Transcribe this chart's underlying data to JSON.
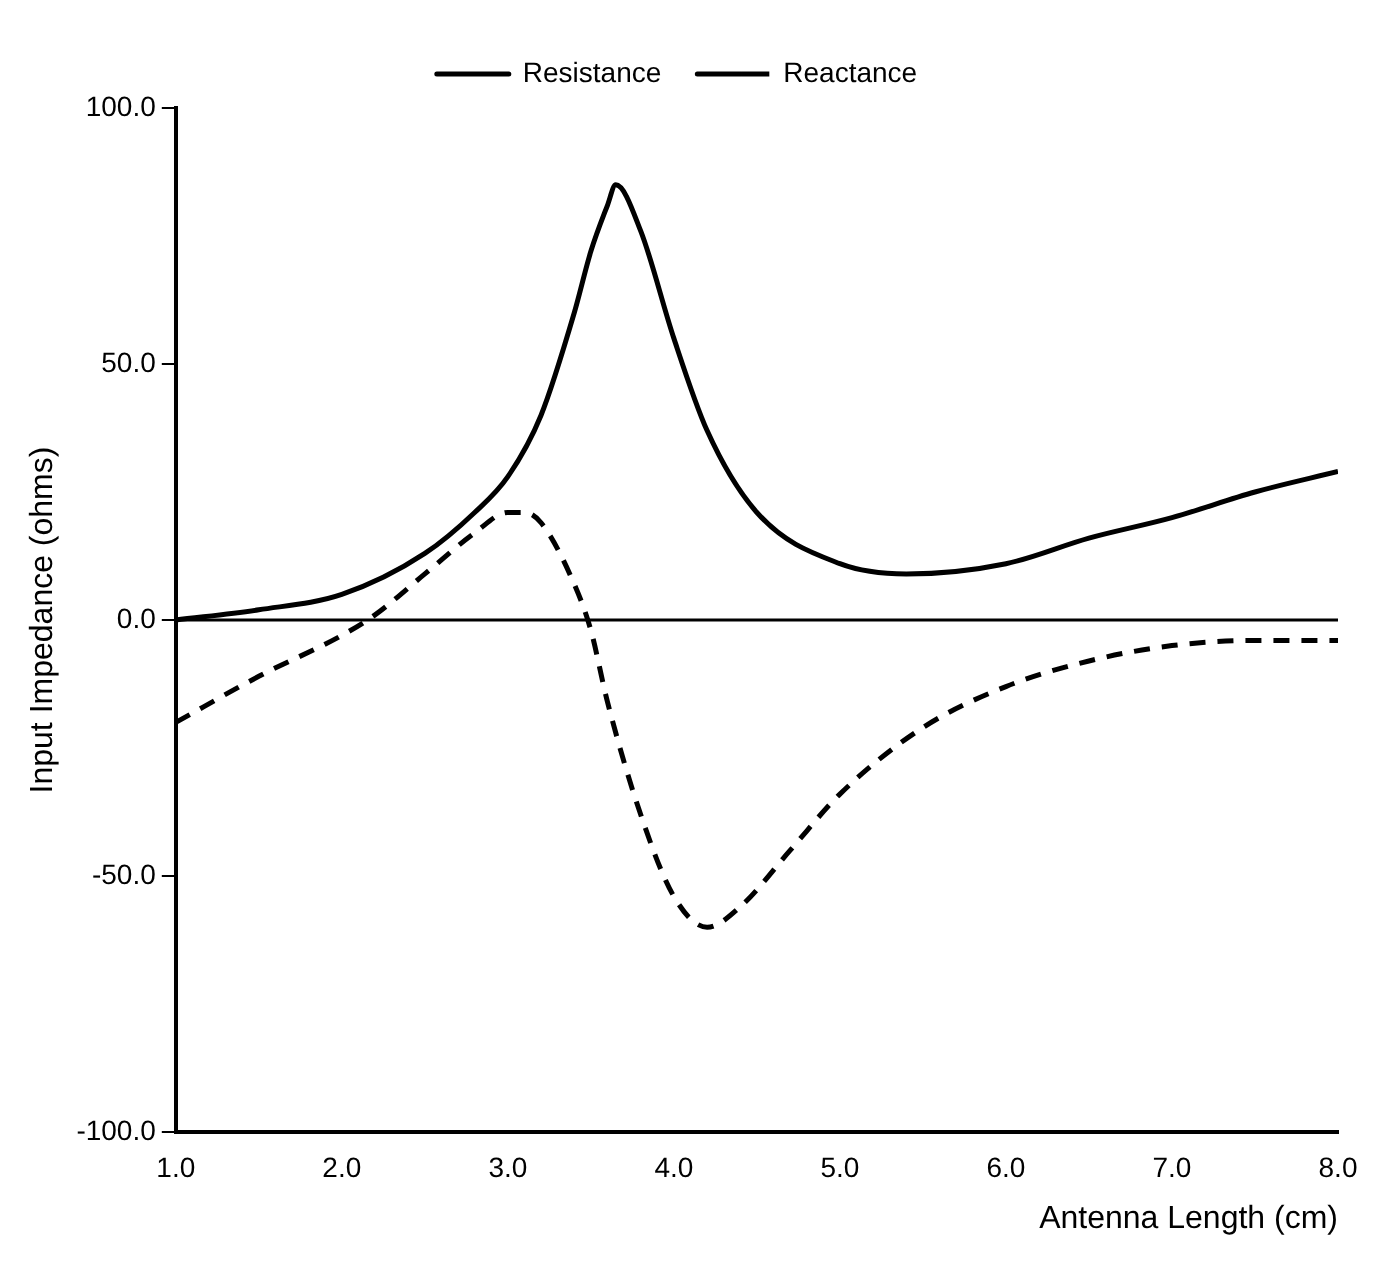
{
  "chart_data": {
    "type": "line",
    "xlabel": "Antenna Length (cm)",
    "ylabel": "Input Impedance (ohms)",
    "xlim": [
      1,
      8
    ],
    "ylim": [
      -100,
      100
    ],
    "xticks": [
      {
        "value": 1,
        "label": "1.0"
      },
      {
        "value": 2,
        "label": "2.0"
      },
      {
        "value": 3,
        "label": "3.0"
      },
      {
        "value": 4,
        "label": "4.0"
      },
      {
        "value": 5,
        "label": "5.0"
      },
      {
        "value": 6,
        "label": "6.0"
      },
      {
        "value": 7,
        "label": "7.0"
      },
      {
        "value": 8,
        "label": "8.0"
      }
    ],
    "yticks": [
      {
        "value": -100,
        "label": "-100.0"
      },
      {
        "value": -50,
        "label": "-50.0"
      },
      {
        "value": 0,
        "label": "0.0"
      },
      {
        "value": 50,
        "label": "50.0"
      },
      {
        "value": 100,
        "label": "100.0"
      }
    ],
    "grid": false,
    "legend": "top",
    "marker": "none",
    "ref_lines": [
      {
        "axis": "y",
        "value": 0,
        "color": "#000000"
      }
    ],
    "series": [
      {
        "name": "Resistance",
        "color": "#000000",
        "line_style": "solid",
        "x": [
          1,
          1.5,
          2,
          2.5,
          2.8,
          3,
          3.2,
          3.4,
          3.5,
          3.6,
          3.65,
          3.8,
          4,
          4.2,
          4.5,
          5,
          5.4,
          6,
          6.5,
          7,
          7.5,
          8
        ],
        "values": [
          0,
          2,
          5,
          13,
          21,
          28,
          40,
          60,
          72,
          81,
          85,
          76,
          55,
          37,
          21,
          11,
          9,
          11,
          16,
          20,
          25,
          29
        ]
      },
      {
        "name": "Reactance",
        "color": "#000000",
        "line_style": "dashed",
        "x": [
          1,
          1.5,
          2,
          2.2,
          2.5,
          2.8,
          3,
          3.1,
          3.2,
          3.4,
          3.5,
          3.6,
          3.8,
          4,
          4.2,
          4.4,
          4.7,
          5,
          5.5,
          6,
          6.5,
          7,
          7.5,
          8
        ],
        "values": [
          -20,
          -11,
          -3,
          1,
          9,
          17,
          21,
          21,
          19,
          7,
          -2,
          -16,
          -38,
          -54,
          -60,
          -56,
          -45,
          -34,
          -21,
          -13,
          -8,
          -5,
          -4,
          -4
        ]
      }
    ]
  }
}
